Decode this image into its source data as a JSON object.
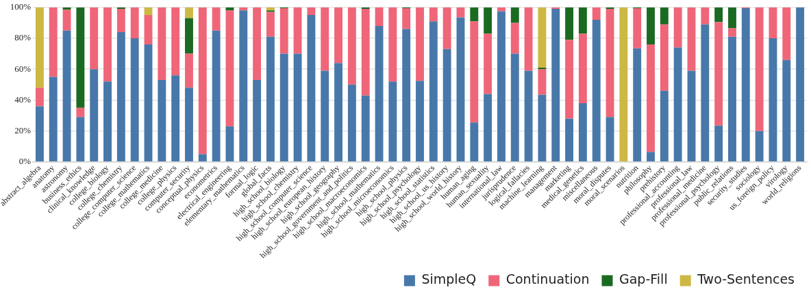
{
  "chart_data": {
    "type": "bar",
    "stacked": true,
    "categories": [
      "abstract_algebra",
      "anatomy",
      "astronomy",
      "business_ethics",
      "clinical_knowledge",
      "college_biology",
      "college_chemistry",
      "college_computer_science",
      "college_mathematics",
      "college_medicine",
      "college_physics",
      "computer_security",
      "conceptual_physics",
      "econometrics",
      "electrical_engineering",
      "elementary_mathematics",
      "formal_logic",
      "global_facts",
      "high_school_biology",
      "high_school_chemistry",
      "high_school_computer_science",
      "high_school_european_history",
      "high_school_geography",
      "high_school_government_and_politics",
      "high_school_macroeconomics",
      "high_school_mathematics",
      "high_school_microeconomics",
      "high_school_physics",
      "high_school_psychology",
      "high_school_statistics",
      "high_school_us_history",
      "high_school_world_history",
      "human_aging",
      "human_sexuality",
      "international_law",
      "jurisprudence",
      "logical_fallacies",
      "machine_learning",
      "management",
      "marketing",
      "medical_genetics",
      "miscellaneous",
      "moral_disputes",
      "moral_scenarios",
      "nutrition",
      "philosophy",
      "prehistory",
      "professional_accounting",
      "professional_law",
      "professional_medicine",
      "professional_psychology",
      "public_relations",
      "security_studies",
      "sociology",
      "us_foreign_policy",
      "virology",
      "world_religions"
    ],
    "series": [
      {
        "name": "SimpleQ",
        "color": "#4878a9",
        "values": [
          36,
          55,
          85,
          29,
          60,
          52,
          84,
          80,
          76,
          53,
          56,
          48,
          5,
          85,
          23,
          98,
          53,
          81,
          70,
          70,
          95,
          59,
          64,
          50,
          43,
          88,
          52,
          86,
          52.5,
          91,
          73,
          93.5,
          25.5,
          44,
          97.5,
          70,
          59,
          43.5,
          99,
          28,
          38,
          92,
          29,
          0,
          73.5,
          6.5,
          46,
          74,
          59,
          89,
          23.5,
          81,
          99.5,
          20,
          80,
          66,
          100
        ]
      },
      {
        "name": "Continuation",
        "color": "#ef6679",
        "values": [
          12,
          45,
          13.5,
          6,
          40,
          48,
          15,
          20,
          19,
          47,
          44,
          22,
          95,
          15,
          75,
          2,
          47,
          16,
          29.5,
          30,
          5,
          41,
          36,
          50,
          56,
          12,
          48,
          13.5,
          47.5,
          9,
          27,
          6.5,
          65.5,
          39,
          2.5,
          20,
          41,
          16.5,
          1,
          51,
          45,
          8,
          70,
          0,
          26,
          69.5,
          43,
          26,
          41,
          11,
          67,
          5.5,
          0.5,
          80,
          20,
          34,
          0
        ]
      },
      {
        "name": "Gap-Fill",
        "color": "#1b6a22",
        "values": [
          0,
          0,
          1.5,
          65,
          0,
          0,
          1,
          0,
          0,
          0,
          0,
          23,
          0,
          0,
          2,
          0,
          0,
          1,
          0.5,
          0,
          0,
          0,
          0,
          0,
          1,
          0,
          0,
          0.5,
          0,
          0,
          0,
          0,
          9,
          17,
          0,
          10,
          0,
          1,
          0,
          21,
          17,
          0,
          1,
          0,
          0.5,
          24,
          11,
          0,
          0,
          0,
          9.5,
          13.5,
          0,
          0,
          0,
          0,
          0
        ]
      },
      {
        "name": "Two-Sentences",
        "color": "#cdb844",
        "values": [
          52,
          0,
          0,
          0,
          0,
          0,
          0,
          0,
          5,
          0,
          0,
          7,
          0,
          0,
          0,
          0,
          0,
          2,
          0,
          0,
          0,
          0,
          0,
          0,
          0,
          0,
          0,
          0,
          0,
          0,
          0,
          0,
          0,
          0,
          0,
          0,
          0,
          39,
          0,
          0,
          0,
          0,
          0,
          100,
          0,
          0,
          0,
          0,
          0,
          0,
          0,
          0,
          0,
          0,
          0,
          0,
          0
        ]
      }
    ],
    "ylim": [
      0,
      100
    ],
    "yticks": [
      {
        "value": 0,
        "label": "0%"
      },
      {
        "value": 20,
        "label": "20%"
      },
      {
        "value": 40,
        "label": "40%"
      },
      {
        "value": 60,
        "label": "60%"
      },
      {
        "value": 80,
        "label": "80%"
      },
      {
        "value": 100,
        "label": "100%"
      }
    ],
    "grid": "y",
    "legend": "bottom right"
  }
}
